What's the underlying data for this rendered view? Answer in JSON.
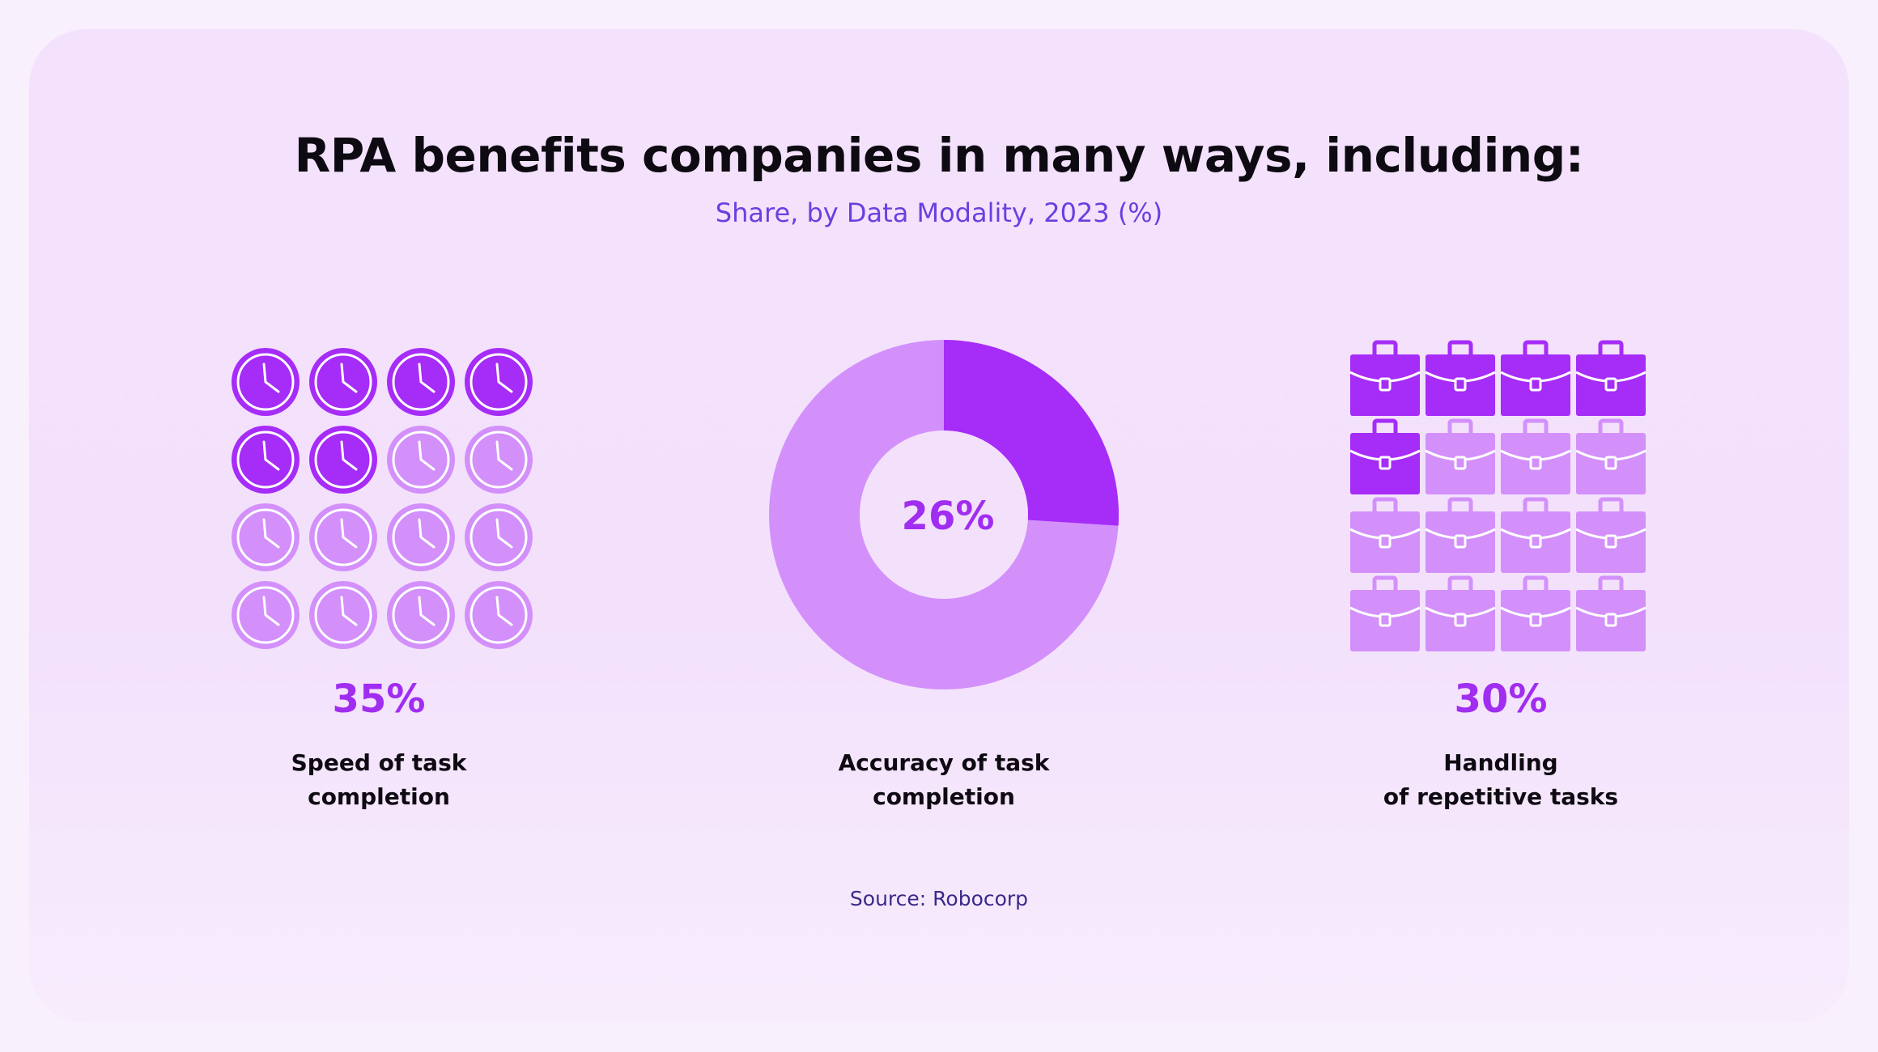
{
  "title": "RPA benefits companies in many ways, including:",
  "subtitle": "Share, by Data Modality, 2023 (%)",
  "source": "Source: Robocorp",
  "colors": {
    "filled": "#a62cf8",
    "unfilled": "#d390fb",
    "percent_text": "#a02df0",
    "subtitle": "#6b3fe0"
  },
  "chart_data": [
    {
      "type": "pictogram",
      "icon": "clock-icon",
      "grid": [
        4,
        4
      ],
      "filled_icons": 6,
      "value": 35,
      "value_label": "35%",
      "label_lines": [
        "Speed of task",
        "completion"
      ]
    },
    {
      "type": "pie",
      "variant": "donut",
      "value": 26,
      "value_label": "26%",
      "label_lines": [
        "Accuracy of task",
        "completion"
      ]
    },
    {
      "type": "pictogram",
      "icon": "briefcase-icon",
      "grid": [
        4,
        4
      ],
      "filled_icons": 5,
      "value": 30,
      "value_label": "30%",
      "label_lines": [
        "Handling",
        "of repetitive tasks"
      ]
    }
  ]
}
